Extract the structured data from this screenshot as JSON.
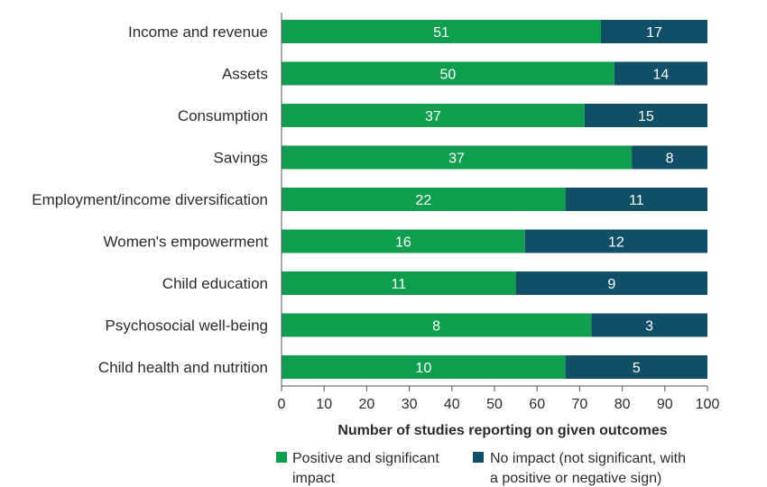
{
  "chart_data": {
    "type": "bar",
    "orientation": "horizontal",
    "stacked": true,
    "normalized_to_percent": true,
    "categories": [
      "Income and revenue",
      "Assets",
      "Consumption",
      "Savings",
      "Employment/income diversification",
      "Women's empowerment",
      "Child education",
      "Psychosocial well-being",
      "Child health and nutrition"
    ],
    "series": [
      {
        "name": "Positive and significant impact",
        "values": [
          51,
          50,
          37,
          37,
          22,
          16,
          11,
          8,
          10
        ],
        "color": "#0f9d4f"
      },
      {
        "name": "No impact (not significant, with a positive or negative sign)",
        "values": [
          17,
          14,
          15,
          8,
          11,
          12,
          9,
          3,
          5
        ],
        "color": "#114f66"
      }
    ],
    "xlabel": "Number of studies reporting on given outcomes",
    "ylabel": "",
    "xlim": [
      0,
      100
    ],
    "xticks": [
      0,
      10,
      20,
      30,
      40,
      50,
      60,
      70,
      80,
      90,
      100
    ],
    "grid": false,
    "legend_position": "bottom"
  },
  "legend": {
    "positive_line1": "Positive and significant",
    "positive_line2": "impact",
    "noimpact_line1": "No impact (not significant, with",
    "noimpact_line2": "a positive or negative sign)"
  }
}
